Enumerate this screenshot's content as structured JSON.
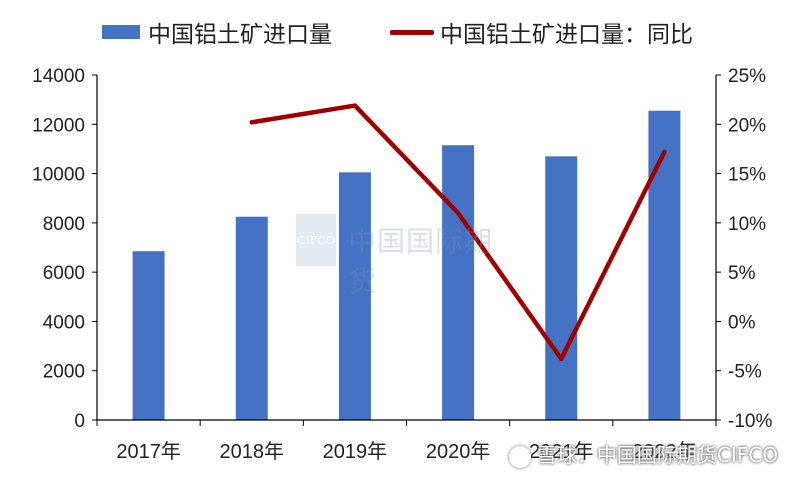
{
  "chart_data": {
    "type": "bar",
    "categories": [
      "2017年",
      "2018年",
      "2019年",
      "2020年",
      "2021年",
      "2022年"
    ],
    "series": [
      {
        "name": "中国铝土矿进口量",
        "type": "bar",
        "axis": "left",
        "color": "#4472C4",
        "values": [
          6850,
          8250,
          10050,
          11150,
          10700,
          12550
        ]
      },
      {
        "name": "中国铝土矿进口量：同比",
        "type": "line",
        "axis": "right",
        "color": "#A00000",
        "values": [
          null,
          20.2,
          21.9,
          11.0,
          -3.8,
          17.2
        ]
      }
    ],
    "y_left": {
      "min": 0,
      "max": 14000,
      "step": 2000,
      "ticks": [
        "0",
        "2000",
        "4000",
        "6000",
        "8000",
        "10000",
        "12000",
        "14000"
      ]
    },
    "y_right": {
      "min": -10,
      "max": 25,
      "step": 5,
      "ticks": [
        "-10%",
        "-5%",
        "0%",
        "5%",
        "10%",
        "15%",
        "20%",
        "25%"
      ]
    },
    "grid": false,
    "legend_position": "top"
  },
  "watermark": {
    "logo_text": "CIFCO",
    "text": "中国国际期货"
  },
  "footer": {
    "text": "雪球：中国国际期货CIFCO"
  }
}
